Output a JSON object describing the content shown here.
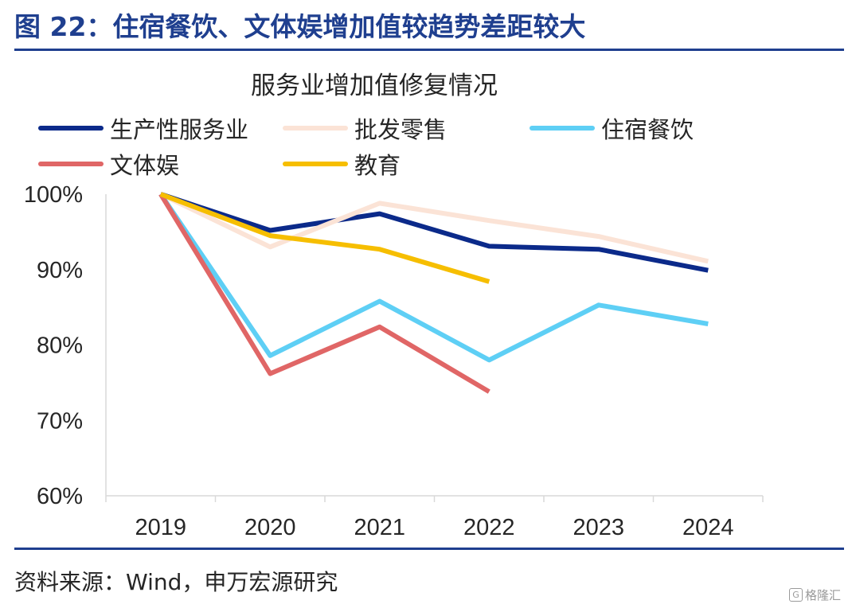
{
  "figure": {
    "title": "图 22：住宿餐饮、文体娱增加值较趋势差距较大",
    "source": "资料来源：Wind，申万宏源研究",
    "watermark": "格隆汇"
  },
  "chart_data": {
    "type": "line",
    "title": "服务业增加值修复情况",
    "xlabel": "",
    "ylabel": "",
    "x": [
      "2019",
      "2020",
      "2021",
      "2022",
      "2023",
      "2024"
    ],
    "ylim": [
      60,
      100
    ],
    "yticks": [
      "60%",
      "70%",
      "80%",
      "90%",
      "100%"
    ],
    "ytick_values": [
      60,
      70,
      80,
      90,
      100
    ],
    "grid": false,
    "legend_position": "top",
    "series": [
      {
        "name": "生产性服务业",
        "color": "#0b2a8a",
        "values": [
          100,
          95.2,
          97.4,
          93.1,
          92.7,
          89.9
        ]
      },
      {
        "name": "批发零售",
        "color": "#fbe3d6",
        "values": [
          100,
          93.0,
          98.8,
          96.5,
          94.4,
          91.1
        ]
      },
      {
        "name": "住宿餐饮",
        "color": "#5ecff5",
        "values": [
          100,
          78.6,
          85.8,
          78.0,
          85.3,
          82.8
        ]
      },
      {
        "name": "文体娱",
        "color": "#e06666",
        "values": [
          100,
          76.2,
          82.4,
          73.8,
          null,
          null
        ]
      },
      {
        "name": "教育",
        "color": "#f6be00",
        "values": [
          100,
          94.5,
          92.7,
          88.4,
          null,
          null
        ]
      }
    ]
  }
}
